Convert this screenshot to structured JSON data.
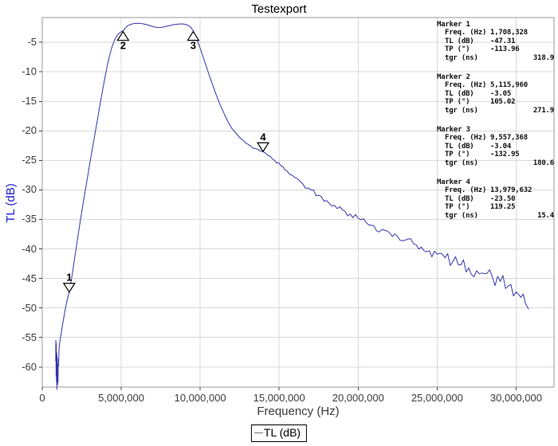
{
  "title": "Testexport",
  "colors": {
    "curve": "#3535ad",
    "y_axis_title": "#1e1ecf",
    "grid": "#d9d9d9",
    "plot_border": "#999999",
    "tick_text": "#3d3d3d",
    "legend_sample_line": "#7a7a7a"
  },
  "chart_data": {
    "type": "line",
    "title": "Testexport",
    "xlabel": "Frequency (Hz)",
    "ylabel": "TL (dB)",
    "xlim": [
      0,
      32400000
    ],
    "ylim": [
      -63.4,
      -0.8
    ],
    "grid": true,
    "legend": {
      "label": "TL (dB)",
      "position": "bottom-center"
    },
    "x_ticks": [
      {
        "value": 0,
        "label": "0"
      },
      {
        "value": 5000000,
        "label": "5,000,000"
      },
      {
        "value": 10000000,
        "label": "10,000,000"
      },
      {
        "value": 15000000,
        "label": "15,000,000"
      },
      {
        "value": 20000000,
        "label": "20,000,000"
      },
      {
        "value": 25000000,
        "label": "25,000,000"
      },
      {
        "value": 30000000,
        "label": "30,000,000"
      }
    ],
    "y_ticks": [
      {
        "value": -5,
        "label": "-5"
      },
      {
        "value": -10,
        "label": "-10"
      },
      {
        "value": -15,
        "label": "-15"
      },
      {
        "value": -20,
        "label": "-20"
      },
      {
        "value": -25,
        "label": "-25"
      },
      {
        "value": -30,
        "label": "-30"
      },
      {
        "value": -35,
        "label": "-35"
      },
      {
        "value": -40,
        "label": "-40"
      },
      {
        "value": -45,
        "label": "-45"
      },
      {
        "value": -50,
        "label": "-50"
      },
      {
        "value": -55,
        "label": "-55"
      },
      {
        "value": -60,
        "label": "-60"
      }
    ],
    "plot_markers": [
      {
        "n": "1",
        "freq": 1708328,
        "tl": -47.31,
        "orientation": "down"
      },
      {
        "n": "2",
        "freq": 5115960,
        "tl": -3.05,
        "orientation": "up"
      },
      {
        "n": "3",
        "freq": 9557368,
        "tl": -3.04,
        "orientation": "up"
      },
      {
        "n": "4",
        "freq": 13979632,
        "tl": -23.5,
        "orientation": "down"
      }
    ],
    "noise_db": [
      [
        0,
        0
      ],
      [
        9000000,
        0
      ],
      [
        10000000,
        0.06
      ],
      [
        12000000,
        0.12
      ],
      [
        14000000,
        0.22
      ],
      [
        16000000,
        0.35
      ],
      [
        18000000,
        0.45
      ],
      [
        20000000,
        0.6
      ],
      [
        22000000,
        0.75
      ],
      [
        24000000,
        0.9
      ],
      [
        26000000,
        1.1
      ],
      [
        28000000,
        1.3
      ],
      [
        30000000,
        1.6
      ],
      [
        31000000,
        1.9
      ]
    ],
    "series": [
      {
        "name": "TL (dB)",
        "points": [
          [
            850000,
            -59
          ],
          [
            862000,
            -55.5
          ],
          [
            876000,
            -61.5
          ],
          [
            888000,
            -56
          ],
          [
            900000,
            -62.5
          ],
          [
            912000,
            -57.5
          ],
          [
            924000,
            -63.8
          ],
          [
            936000,
            -58
          ],
          [
            948000,
            -62
          ],
          [
            960000,
            -59.5
          ],
          [
            972000,
            -63
          ],
          [
            986000,
            -60.5
          ],
          [
            1000000,
            -62.5
          ],
          [
            1015000,
            -58.5
          ],
          [
            1035000,
            -59.8
          ],
          [
            1060000,
            -57.2
          ],
          [
            1090000,
            -56.2
          ],
          [
            1150000,
            -55.1
          ],
          [
            1250000,
            -53.4
          ],
          [
            1350000,
            -51.8
          ],
          [
            1450000,
            -50.3
          ],
          [
            1550000,
            -49.0
          ],
          [
            1630000,
            -48.1
          ],
          [
            1708328,
            -47.31
          ],
          [
            1800000,
            -45.9
          ],
          [
            1900000,
            -44.3
          ],
          [
            2000000,
            -42.5
          ],
          [
            2150000,
            -39.8
          ],
          [
            2300000,
            -37.1
          ],
          [
            2450000,
            -34.6
          ],
          [
            2600000,
            -32.1
          ],
          [
            2750000,
            -29.7
          ],
          [
            2900000,
            -27.3
          ],
          [
            3050000,
            -24.9
          ],
          [
            3200000,
            -22.6
          ],
          [
            3350000,
            -20.3
          ],
          [
            3500000,
            -18.0
          ],
          [
            3650000,
            -15.7
          ],
          [
            3800000,
            -13.4
          ],
          [
            3950000,
            -11.2
          ],
          [
            4100000,
            -9.2
          ],
          [
            4250000,
            -7.4
          ],
          [
            4400000,
            -5.9
          ],
          [
            4550000,
            -4.8
          ],
          [
            4700000,
            -4.0
          ],
          [
            4850000,
            -3.5
          ],
          [
            5000000,
            -3.2
          ],
          [
            5115960,
            -3.05
          ],
          [
            5250000,
            -2.6
          ],
          [
            5400000,
            -2.2
          ],
          [
            5600000,
            -1.95
          ],
          [
            5850000,
            -1.8
          ],
          [
            6100000,
            -1.78
          ],
          [
            6350000,
            -1.85
          ],
          [
            6600000,
            -2.0
          ],
          [
            6850000,
            -2.2
          ],
          [
            7100000,
            -2.4
          ],
          [
            7350000,
            -2.5
          ],
          [
            7600000,
            -2.45
          ],
          [
            7850000,
            -2.3
          ],
          [
            8100000,
            -2.15
          ],
          [
            8350000,
            -2.0
          ],
          [
            8600000,
            -1.9
          ],
          [
            8850000,
            -1.88
          ],
          [
            9050000,
            -1.95
          ],
          [
            9250000,
            -2.15
          ],
          [
            9400000,
            -2.45
          ],
          [
            9557368,
            -3.04
          ],
          [
            9700000,
            -3.9
          ],
          [
            9850000,
            -4.9
          ],
          [
            10000000,
            -6.0
          ],
          [
            10200000,
            -7.6
          ],
          [
            10400000,
            -9.2
          ],
          [
            10600000,
            -10.8
          ],
          [
            10800000,
            -12.3
          ],
          [
            11000000,
            -13.8
          ],
          [
            11250000,
            -15.5
          ],
          [
            11500000,
            -17.0
          ],
          [
            11750000,
            -18.4
          ],
          [
            12000000,
            -19.6
          ],
          [
            12300000,
            -20.5
          ],
          [
            12600000,
            -21.4
          ],
          [
            12900000,
            -22.1
          ],
          [
            13200000,
            -22.6
          ],
          [
            13500000,
            -23.0
          ],
          [
            13979632,
            -23.5
          ],
          [
            14300000,
            -24.2
          ],
          [
            14700000,
            -25.0
          ],
          [
            15100000,
            -25.9
          ],
          [
            15500000,
            -26.8
          ],
          [
            16000000,
            -27.9
          ],
          [
            16500000,
            -29.0
          ],
          [
            17000000,
            -30.0
          ],
          [
            17500000,
            -30.9
          ],
          [
            18000000,
            -31.8
          ],
          [
            18500000,
            -32.6
          ],
          [
            19000000,
            -33.4
          ],
          [
            19500000,
            -34.1
          ],
          [
            20000000,
            -34.8
          ],
          [
            20500000,
            -35.5
          ],
          [
            21000000,
            -36.1
          ],
          [
            21500000,
            -36.7
          ],
          [
            22000000,
            -37.3
          ],
          [
            22500000,
            -37.9
          ],
          [
            23000000,
            -38.5
          ],
          [
            23500000,
            -39.1
          ],
          [
            24000000,
            -39.7
          ],
          [
            24500000,
            -40.3
          ],
          [
            25000000,
            -40.9
          ],
          [
            25500000,
            -41.5
          ],
          [
            26000000,
            -42.1
          ],
          [
            26500000,
            -42.7
          ],
          [
            27000000,
            -43.2
          ],
          [
            27500000,
            -43.7
          ],
          [
            28000000,
            -44.2
          ],
          [
            28500000,
            -44.8
          ],
          [
            29000000,
            -45.5
          ],
          [
            29500000,
            -46.3
          ],
          [
            30000000,
            -47.3
          ],
          [
            30300000,
            -48.2
          ],
          [
            30600000,
            -49.3
          ],
          [
            30800000,
            -50.2
          ]
        ]
      }
    ]
  },
  "marker_panel": {
    "blocks": [
      {
        "title": "Marker 1",
        "rows": [
          [
            "Freq. (Hz)",
            "1,708,328"
          ],
          [
            "TL (dB)",
            "-47.31"
          ],
          [
            "TP (°)",
            "-113.96"
          ],
          [
            "tgr (ns)",
            "318.9"
          ]
        ]
      },
      {
        "title": "Marker 2",
        "rows": [
          [
            "Freq. (Hz)",
            "5,115,960"
          ],
          [
            "TL (dB)",
            "-3.05"
          ],
          [
            "TP (°)",
            "105.02"
          ],
          [
            "tgr (ns)",
            "271.9"
          ]
        ]
      },
      {
        "title": "Marker 3",
        "rows": [
          [
            "Freq. (Hz)",
            "9,557,368"
          ],
          [
            "TL (dB)",
            "-3.04"
          ],
          [
            "TP (°)",
            "-132.95"
          ],
          [
            "tgr (ns)",
            "180.6"
          ]
        ]
      },
      {
        "title": "Marker 4",
        "rows": [
          [
            "Freq. (Hz)",
            "13,979,632"
          ],
          [
            "TL (dB)",
            "-23.50"
          ],
          [
            "TP (°)",
            "119.25"
          ],
          [
            "tgr (ns)",
            "15.4"
          ]
        ]
      }
    ]
  }
}
